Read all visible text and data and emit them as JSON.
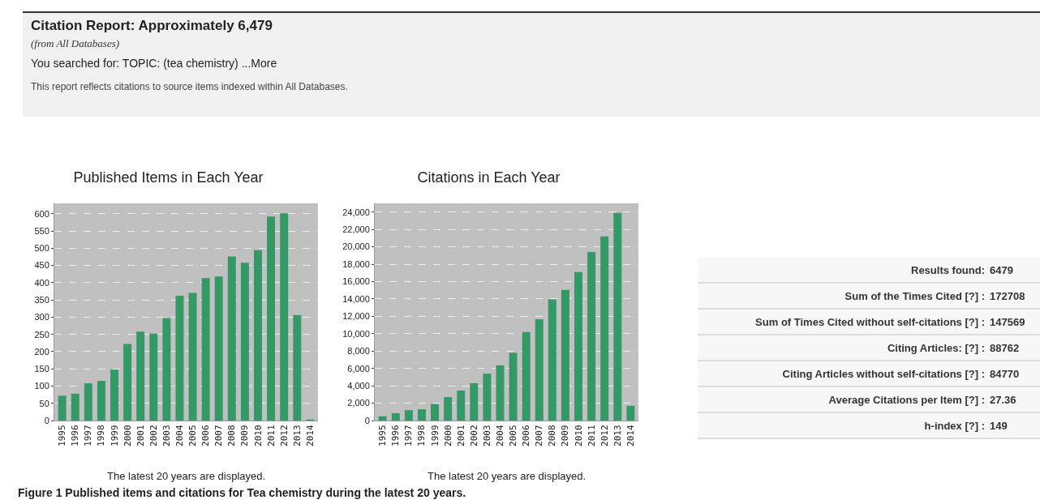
{
  "chart_data": [
    {
      "type": "other",
      "title": "Citation Report: Approximately 6,479",
      "subtitle": "(from All Databases)",
      "annotations": [
        "You searched for:  TOPIC: (tea chemistry)  ...More",
        "This report reflects citations to source items indexed within All Databases."
      ]
    },
    {
      "type": "bar",
      "title": "Published Items in Each Year",
      "categories": [
        "1995",
        "1996",
        "1997",
        "1998",
        "1999",
        "2000",
        "2001",
        "2002",
        "2003",
        "2004",
        "2005",
        "2006",
        "2007",
        "2008",
        "2009",
        "2010",
        "2011",
        "2012",
        "2013",
        "2014"
      ],
      "values": [
        72,
        78,
        108,
        115,
        148,
        222,
        258,
        252,
        297,
        362,
        370,
        413,
        418,
        476,
        458,
        494,
        592,
        601,
        306,
        3
      ],
      "color": "#339966",
      "ylim": [
        0,
        630
      ],
      "yticks": [
        0,
        50,
        100,
        150,
        200,
        250,
        300,
        350,
        400,
        450,
        500,
        550,
        600
      ],
      "grid": "y",
      "legend": false,
      "annotations": [
        "The latest 20 years are displayed."
      ]
    },
    {
      "type": "bar",
      "title": "Citations in Each Year",
      "categories": [
        "1995",
        "1996",
        "1997",
        "1998",
        "1999",
        "2000",
        "2001",
        "2002",
        "2003",
        "2004",
        "2005",
        "2006",
        "2007",
        "2008",
        "2009",
        "2010",
        "2011",
        "2012",
        "2013",
        "2014"
      ],
      "values": [
        500,
        850,
        1200,
        1300,
        1900,
        2700,
        3450,
        4300,
        5400,
        6350,
        7800,
        10200,
        11650,
        13950,
        15050,
        17100,
        19400,
        21200,
        23900,
        1700
      ],
      "color": "#339966",
      "ylim": [
        0,
        25000
      ],
      "yticks": [
        0,
        {
          "value": 2000,
          "label": "2,000"
        },
        {
          "value": 4000,
          "label": "4,000"
        },
        {
          "value": 6000,
          "label": "6,000"
        },
        {
          "value": 8000,
          "label": "8,000"
        },
        {
          "value": 10000,
          "label": "10,000"
        },
        {
          "value": 12000,
          "label": "12,000"
        },
        {
          "value": 14000,
          "label": "14,000"
        },
        {
          "value": 16000,
          "label": "16,000"
        },
        {
          "value": 18000,
          "label": "18,000"
        },
        {
          "value": 20000,
          "label": "20,000"
        },
        {
          "value": 22000,
          "label": "22,000"
        },
        {
          "value": 24000,
          "label": "24,000"
        }
      ],
      "grid": "y",
      "legend": false,
      "annotations": [
        "The latest 20 years are displayed."
      ]
    },
    {
      "type": "other",
      "annotations": [
        "Results found: 6479",
        "Sum of the Times Cited [?] : 172708",
        "Sum of Times Cited without self-citations [?] : 147569",
        "Citing Articles: [?] : 88762",
        "Citing Articles without self-citations [?] : 84770",
        "Average Citations per Item [?] : 27.36",
        "h-index [?] : 149"
      ]
    },
    {
      "type": "other",
      "annotations": [
        "Figure 1 Published items and citations for Tea chemistry during the latest 20 years."
      ]
    }
  ]
}
